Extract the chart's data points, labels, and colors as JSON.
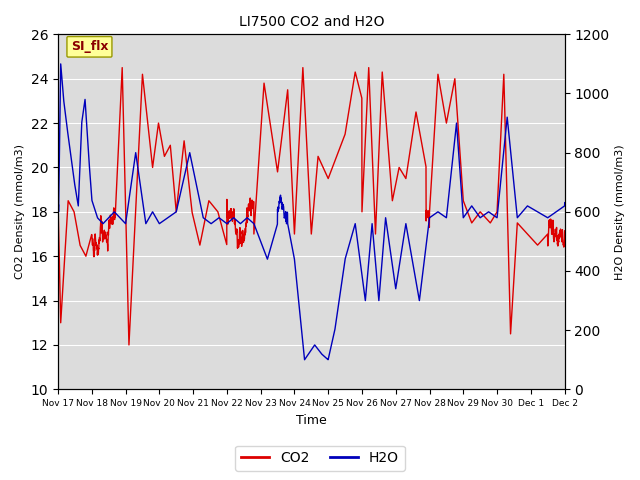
{
  "title": "LI7500 CO2 and H2O",
  "xlabel": "Time",
  "ylabel_left": "CO2 Density (mmol/m3)",
  "ylabel_right": "H2O Density (mmol/m3)",
  "ylim_left": [
    10,
    26
  ],
  "ylim_right": [
    0,
    1200
  ],
  "yticks_left": [
    10,
    12,
    14,
    16,
    18,
    20,
    22,
    24,
    26
  ],
  "yticks_right": [
    0,
    200,
    400,
    600,
    800,
    1000,
    1200
  ],
  "co2_color": "#DD0000",
  "h2o_color": "#0000BB",
  "linewidth": 1.0,
  "background_color": "#DCDCDC",
  "figure_background": "#FFFFFF",
  "legend_co2": "CO2",
  "legend_h2o": "H2O",
  "annotation_text": "SI_flx",
  "annotation_color": "#8B0000",
  "annotation_bg": "#FFFF99",
  "annotation_border": "#999900",
  "x_tick_labels": [
    "Nov 17",
    "Nov 18",
    "Nov 19",
    "Nov 20",
    "Nov 21",
    "Nov 22",
    "Nov 23",
    "Nov 24",
    "Nov 25",
    "Nov 26",
    "Nov 27",
    "Nov 28",
    "Nov 29",
    "Nov 30",
    "Dec 1",
    "Dec 2"
  ],
  "num_points": 3840,
  "total_days": 16
}
